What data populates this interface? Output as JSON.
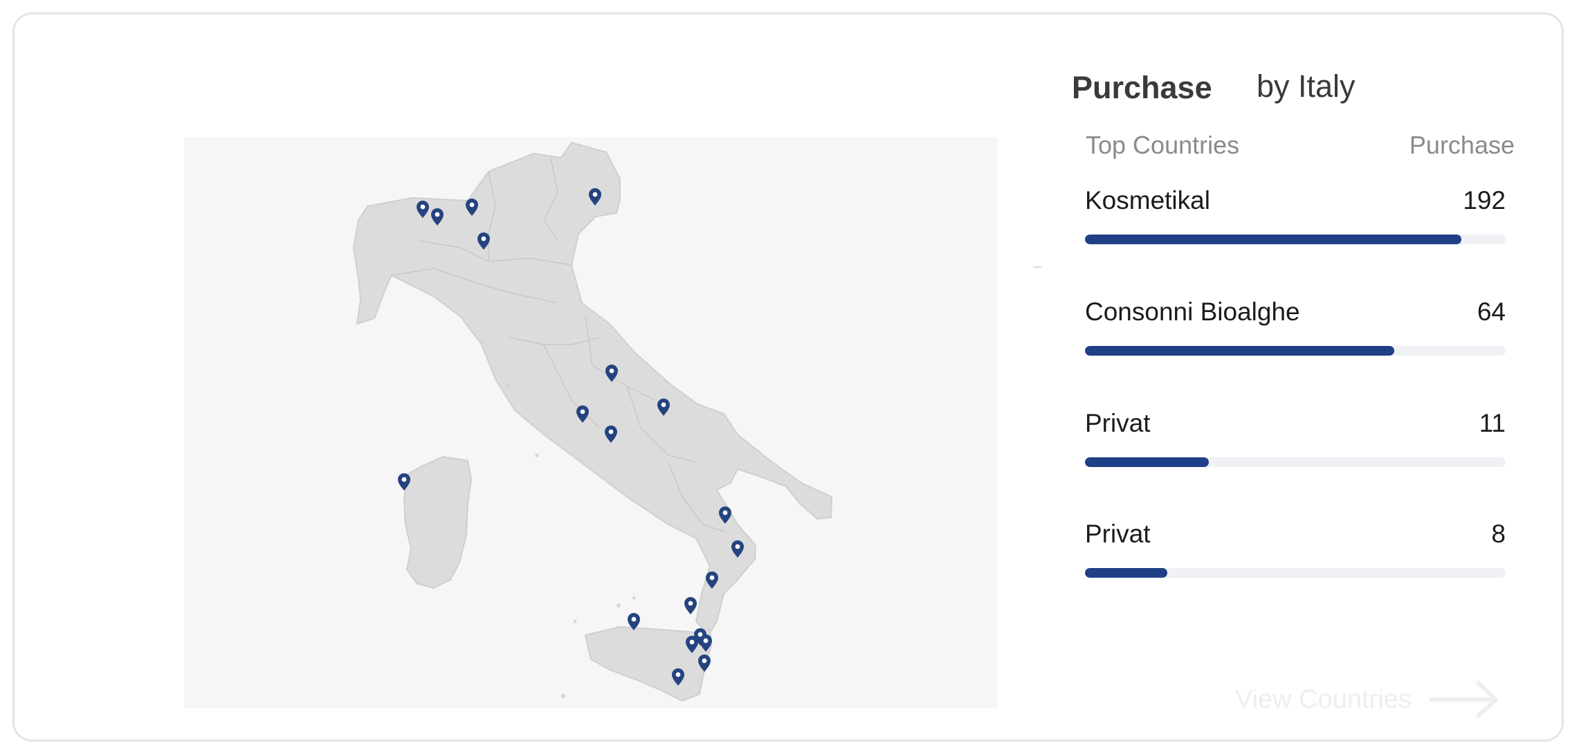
{
  "header": {
    "title": "Purchase",
    "subtitle": "by Italy"
  },
  "table": {
    "col_name": "Top Countries",
    "col_value": "Purchase"
  },
  "rows": [
    {
      "label": "Kosmetikal",
      "value": "192",
      "fraction": 0.895
    },
    {
      "label": "Consonni Bioalghe",
      "value": "64",
      "fraction": 0.735
    },
    {
      "label": "Privat",
      "value": "11",
      "fraction": 0.295
    },
    {
      "label": "Privat",
      "value": "8",
      "fraction": 0.195
    }
  ],
  "footer": {
    "link": "View Countries"
  },
  "colors": {
    "accent": "#1f3f87",
    "track": "#f0f1f4",
    "map_land": "#dcdcdc",
    "map_bg": "#f6f6f6",
    "pin": "#24437f"
  },
  "map": {
    "icon": "map-pin-icon",
    "pin_count": 20
  }
}
